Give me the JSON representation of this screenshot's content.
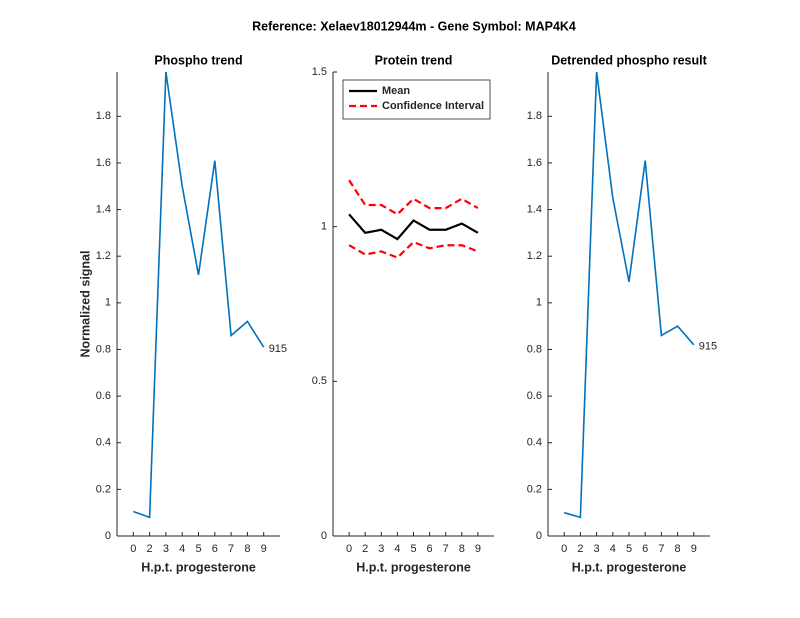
{
  "title": "Reference:  Xelaev18012944m - Gene Symbol:  MAP4K4",
  "chart_data": [
    {
      "type": "line",
      "title": "Phospho trend",
      "xlabel": "H.p.t. progesterone",
      "ylabel": "Normalized signal",
      "categories": [
        "0",
        "2",
        "3",
        "4",
        "5",
        "6",
        "7",
        "8",
        "9"
      ],
      "series": [
        {
          "color": "#0072bd",
          "values": [
            0.105,
            0.08,
            1.99,
            1.5,
            1.12,
            1.61,
            0.86,
            0.92,
            0.81
          ]
        }
      ],
      "annotation": "915",
      "ylim": [
        0,
        1.99
      ],
      "yticks": [
        0,
        0.2,
        0.4,
        0.6,
        0.8,
        1,
        1.2,
        1.4,
        1.6,
        1.8
      ]
    },
    {
      "type": "line",
      "title": "Protein trend",
      "xlabel": "H.p.t. progesterone",
      "categories": [
        "0",
        "2",
        "3",
        "4",
        "5",
        "6",
        "7",
        "8",
        "9"
      ],
      "series": [
        {
          "name": "Mean",
          "color": "#000000",
          "dash": false,
          "values": [
            1.04,
            0.98,
            0.99,
            0.96,
            1.02,
            0.99,
            0.99,
            1.01,
            0.98
          ]
        },
        {
          "name": "Confidence Interval",
          "color": "#ff0000",
          "dash": true,
          "values": [
            1.15,
            1.07,
            1.07,
            1.04,
            1.09,
            1.06,
            1.06,
            1.09,
            1.06
          ]
        },
        {
          "color": "#ff0000",
          "dash": true,
          "values": [
            0.94,
            0.91,
            0.92,
            0.9,
            0.95,
            0.93,
            0.94,
            0.94,
            0.92
          ]
        }
      ],
      "legend": "upper left",
      "ylim": [
        0,
        1.5
      ],
      "yticks": [
        0,
        0.5,
        1,
        1.5
      ]
    },
    {
      "type": "line",
      "title": "Detrended phospho result",
      "xlabel": "H.p.t. progesterone",
      "categories": [
        "0",
        "2",
        "3",
        "4",
        "5",
        "6",
        "7",
        "8",
        "9"
      ],
      "series": [
        {
          "color": "#0072bd",
          "values": [
            0.1,
            0.08,
            1.99,
            1.45,
            1.09,
            1.61,
            0.86,
            0.9,
            0.82
          ]
        }
      ],
      "annotation": "915",
      "ylim": [
        0,
        1.99
      ],
      "yticks": [
        0,
        0.2,
        0.4,
        0.6,
        0.8,
        1,
        1.2,
        1.4,
        1.6,
        1.8
      ]
    }
  ]
}
